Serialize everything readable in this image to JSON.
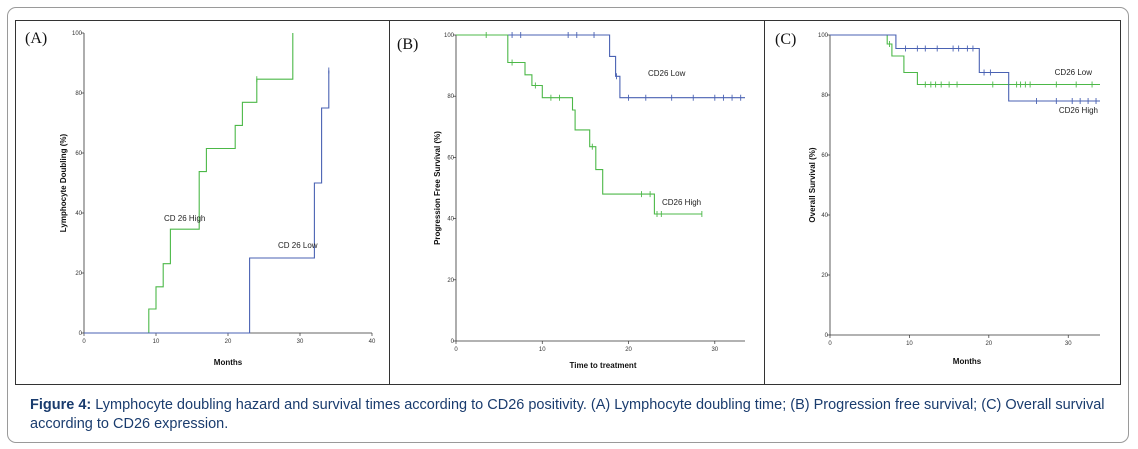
{
  "caption": {
    "label": "Figure 4:",
    "text": "Lymphocyte doubling hazard and survival times according to CD26 positivity. (A) Lymphocyte doubling time; (B) Progression free survival; (C) Overall survival according to CD26 expression."
  },
  "colors": {
    "high": "#4cb848",
    "low": "#4a62b3",
    "axis": "#333333"
  },
  "chart_data": [
    {
      "panel": "(A)",
      "type": "line",
      "xlabel": "Months",
      "ylabel": "Lymphocyte Doubling (%)",
      "xlim": [
        0,
        40
      ],
      "ylim": [
        0,
        100
      ],
      "xticks": [
        0,
        10,
        20,
        30,
        40
      ],
      "yticks": [
        0,
        20,
        40,
        60,
        80,
        100
      ],
      "series": [
        {
          "name": "CD 26 High",
          "color_key": "high",
          "steps": [
            [
              0,
              0
            ],
            [
              9,
              0
            ],
            [
              9,
              8
            ],
            [
              10,
              8
            ],
            [
              10,
              15.4
            ],
            [
              11,
              15.4
            ],
            [
              11,
              23.1
            ],
            [
              12,
              23.1
            ],
            [
              12,
              34.6
            ],
            [
              16,
              34.6
            ],
            [
              16,
              53.8
            ],
            [
              17,
              53.8
            ],
            [
              17,
              61.5
            ],
            [
              21,
              61.5
            ],
            [
              21,
              69.2
            ],
            [
              22,
              69.2
            ],
            [
              22,
              76.9
            ],
            [
              24,
              76.9
            ],
            [
              24,
              84.6
            ],
            [
              29,
              84.6
            ],
            [
              29,
              100
            ]
          ],
          "censored": [
            [
              24,
              84.6
            ]
          ]
        },
        {
          "name": "CD 26 Low",
          "color_key": "low",
          "steps": [
            [
              0,
              0
            ],
            [
              23,
              0
            ],
            [
              23,
              25
            ],
            [
              32,
              25
            ],
            [
              32,
              50
            ],
            [
              33,
              50
            ],
            [
              33,
              75
            ],
            [
              34,
              75
            ],
            [
              34,
              87.5
            ]
          ],
          "censored": [
            [
              34,
              87.5
            ]
          ]
        }
      ]
    },
    {
      "panel": "(B)",
      "type": "line",
      "xlabel": "Time to treatment",
      "ylabel": "Progression Free Survival (%)",
      "xlim": [
        0,
        33.5
      ],
      "ylim": [
        0,
        100
      ],
      "xticks": [
        0,
        10,
        20,
        30
      ],
      "yticks": [
        0,
        20,
        40,
        60,
        80,
        100
      ],
      "series": [
        {
          "name": "CD26 Low",
          "color_key": "low",
          "steps": [
            [
              0,
              100
            ],
            [
              17.8,
              100
            ],
            [
              17.8,
              93
            ],
            [
              18.5,
              93
            ],
            [
              18.5,
              86.5
            ],
            [
              19,
              86.5
            ],
            [
              19,
              79.5
            ],
            [
              33.5,
              79.5
            ]
          ],
          "censored": [
            [
              6.5,
              100
            ],
            [
              7.5,
              100
            ],
            [
              13,
              100
            ],
            [
              14,
              100
            ],
            [
              16,
              100
            ],
            [
              18.6,
              86.5
            ],
            [
              20,
              79.5
            ],
            [
              22,
              79.5
            ],
            [
              25,
              79.5
            ],
            [
              27.5,
              79.5
            ],
            [
              30,
              79.5
            ],
            [
              31,
              79.5
            ],
            [
              32,
              79.5
            ],
            [
              33,
              79.5
            ]
          ]
        },
        {
          "name": "CD26 High",
          "color_key": "high",
          "steps": [
            [
              0,
              100
            ],
            [
              6,
              100
            ],
            [
              6,
              91
            ],
            [
              8,
              91
            ],
            [
              8,
              87
            ],
            [
              8.8,
              87
            ],
            [
              8.8,
              83.5
            ],
            [
              10,
              83.5
            ],
            [
              10,
              79.5
            ],
            [
              13.5,
              79.5
            ],
            [
              13.5,
              75.5
            ],
            [
              13.8,
              75.5
            ],
            [
              13.8,
              69
            ],
            [
              15.5,
              69
            ],
            [
              15.5,
              63.5
            ],
            [
              16.2,
              63.5
            ],
            [
              16.2,
              56
            ],
            [
              17,
              56
            ],
            [
              17,
              48
            ],
            [
              23,
              48
            ],
            [
              23,
              41.5
            ],
            [
              28.5,
              41.5
            ]
          ],
          "censored": [
            [
              3.5,
              100
            ],
            [
              6.5,
              91
            ],
            [
              9.2,
              83.5
            ],
            [
              11,
              79.5
            ],
            [
              12,
              79.5
            ],
            [
              15.8,
              63.5
            ],
            [
              21.5,
              48
            ],
            [
              22.5,
              48
            ],
            [
              23.3,
              41.5
            ],
            [
              23.8,
              41.5
            ],
            [
              28.5,
              41.5
            ]
          ]
        }
      ]
    },
    {
      "panel": "(C)",
      "type": "line",
      "xlabel": "Months",
      "ylabel": "Overall Survival (%)",
      "xlim": [
        0,
        34
      ],
      "ylim": [
        0,
        100
      ],
      "xticks": [
        0,
        10,
        20,
        30
      ],
      "yticks": [
        0,
        20,
        40,
        60,
        80,
        100
      ],
      "series": [
        {
          "name": "CD26 High",
          "color_key": "high",
          "steps": [
            [
              0,
              100
            ],
            [
              7.2,
              100
            ],
            [
              7.2,
              97
            ],
            [
              7.8,
              97
            ],
            [
              7.8,
              93
            ],
            [
              9.3,
              93
            ],
            [
              9.3,
              87.5
            ],
            [
              11,
              87.5
            ],
            [
              11,
              83.5
            ],
            [
              34,
              83.5
            ]
          ],
          "censored": [
            [
              7.5,
              97
            ],
            [
              12,
              83.5
            ],
            [
              12.7,
              83.5
            ],
            [
              13.3,
              83.5
            ],
            [
              14,
              83.5
            ],
            [
              15,
              83.5
            ],
            [
              16,
              83.5
            ],
            [
              20.5,
              83.5
            ],
            [
              23.5,
              83.5
            ],
            [
              24,
              83.5
            ],
            [
              24.6,
              83.5
            ],
            [
              25.2,
              83.5
            ],
            [
              28.5,
              83.5
            ],
            [
              31,
              83.5
            ],
            [
              33,
              83.5
            ]
          ]
        },
        {
          "name": "CD26 Low",
          "color_key": "low",
          "steps": [
            [
              0,
              100
            ],
            [
              8.3,
              100
            ],
            [
              8.3,
              95.5
            ],
            [
              18.8,
              95.5
            ],
            [
              18.8,
              87.5
            ],
            [
              22.5,
              87.5
            ],
            [
              22.5,
              78
            ],
            [
              34,
              78
            ]
          ],
          "censored": [
            [
              9.5,
              95.5
            ],
            [
              11,
              95.5
            ],
            [
              12,
              95.5
            ],
            [
              13.5,
              95.5
            ],
            [
              15.5,
              95.5
            ],
            [
              16.2,
              95.5
            ],
            [
              17.3,
              95.5
            ],
            [
              18,
              95.5
            ],
            [
              19.4,
              87.5
            ],
            [
              20.2,
              87.5
            ],
            [
              26,
              78
            ],
            [
              28.5,
              78
            ],
            [
              30.5,
              78
            ],
            [
              31.5,
              78
            ],
            [
              32.5,
              78
            ],
            [
              33.5,
              78
            ]
          ]
        }
      ]
    }
  ]
}
